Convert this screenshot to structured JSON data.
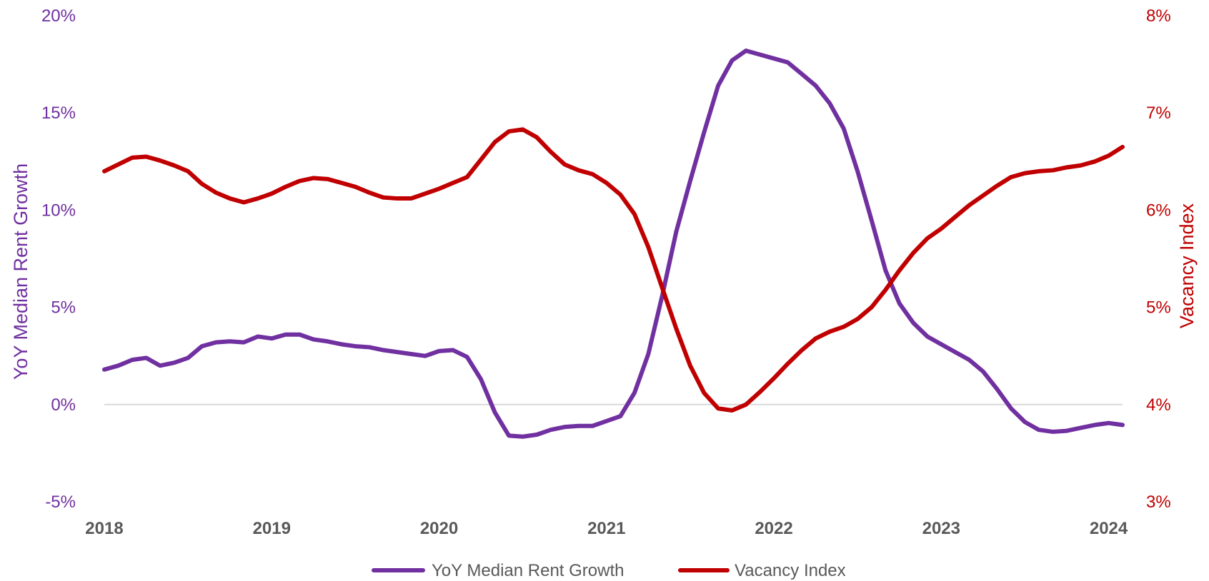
{
  "chart_data": {
    "type": "line",
    "title": "",
    "x_label": "",
    "y_label_left": "YoY Median Rent Growth",
    "y_label_right": "Vacancy Index",
    "x_ticks": [
      "2018",
      "2019",
      "2020",
      "2021",
      "2022",
      "2023",
      "2024"
    ],
    "y_left_ticks": [
      "20%",
      "15%",
      "10%",
      "5%",
      "0%",
      "-5%"
    ],
    "y_right_ticks": [
      "8%",
      "7%",
      "6%",
      "5%",
      "4%",
      "3%"
    ],
    "y_left_range": [
      -5,
      20
    ],
    "y_right_range": [
      3,
      8
    ],
    "x_range": [
      2018.0,
      2024.083
    ],
    "grid": false,
    "zero_line": true,
    "legend_position": "bottom",
    "colors": {
      "rent_growth": "#7030a0",
      "vacancy": "#c00000",
      "zero_line": "#d9d9d9",
      "tick_x": "#595959"
    },
    "series": [
      {
        "name": "YoY Median Rent Growth",
        "axis": "left",
        "points": [
          [
            2018.0,
            1.8
          ],
          [
            2018.083,
            2.0
          ],
          [
            2018.167,
            2.3
          ],
          [
            2018.25,
            2.4
          ],
          [
            2018.333,
            2.0
          ],
          [
            2018.417,
            2.15
          ],
          [
            2018.5,
            2.4
          ],
          [
            2018.583,
            3.0
          ],
          [
            2018.667,
            3.2
          ],
          [
            2018.75,
            3.25
          ],
          [
            2018.833,
            3.2
          ],
          [
            2018.917,
            3.5
          ],
          [
            2019.0,
            3.4
          ],
          [
            2019.083,
            3.6
          ],
          [
            2019.167,
            3.6
          ],
          [
            2019.25,
            3.35
          ],
          [
            2019.333,
            3.25
          ],
          [
            2019.417,
            3.1
          ],
          [
            2019.5,
            3.0
          ],
          [
            2019.583,
            2.95
          ],
          [
            2019.667,
            2.8
          ],
          [
            2019.75,
            2.7
          ],
          [
            2019.833,
            2.6
          ],
          [
            2019.917,
            2.5
          ],
          [
            2020.0,
            2.75
          ],
          [
            2020.083,
            2.8
          ],
          [
            2020.167,
            2.45
          ],
          [
            2020.25,
            1.3
          ],
          [
            2020.333,
            -0.4
          ],
          [
            2020.417,
            -1.6
          ],
          [
            2020.5,
            -1.65
          ],
          [
            2020.583,
            -1.55
          ],
          [
            2020.667,
            -1.3
          ],
          [
            2020.75,
            -1.15
          ],
          [
            2020.833,
            -1.1
          ],
          [
            2020.917,
            -1.1
          ],
          [
            2021.0,
            -0.85
          ],
          [
            2021.083,
            -0.6
          ],
          [
            2021.167,
            0.6
          ],
          [
            2021.25,
            2.6
          ],
          [
            2021.333,
            5.6
          ],
          [
            2021.417,
            8.9
          ],
          [
            2021.5,
            11.5
          ],
          [
            2021.583,
            14.0
          ],
          [
            2021.667,
            16.4
          ],
          [
            2021.75,
            17.7
          ],
          [
            2021.833,
            18.2
          ],
          [
            2021.917,
            18.0
          ],
          [
            2022.0,
            17.8
          ],
          [
            2022.083,
            17.6
          ],
          [
            2022.167,
            17.0
          ],
          [
            2022.25,
            16.4
          ],
          [
            2022.333,
            15.5
          ],
          [
            2022.417,
            14.2
          ],
          [
            2022.5,
            12.0
          ],
          [
            2022.583,
            9.5
          ],
          [
            2022.667,
            6.9
          ],
          [
            2022.75,
            5.2
          ],
          [
            2022.833,
            4.2
          ],
          [
            2022.917,
            3.5
          ],
          [
            2023.0,
            3.1
          ],
          [
            2023.083,
            2.7
          ],
          [
            2023.167,
            2.3
          ],
          [
            2023.25,
            1.7
          ],
          [
            2023.333,
            0.8
          ],
          [
            2023.417,
            -0.2
          ],
          [
            2023.5,
            -0.9
          ],
          [
            2023.583,
            -1.3
          ],
          [
            2023.667,
            -1.4
          ],
          [
            2023.75,
            -1.35
          ],
          [
            2023.833,
            -1.2
          ],
          [
            2023.917,
            -1.05
          ],
          [
            2024.0,
            -0.95
          ],
          [
            2024.083,
            -1.05
          ]
        ]
      },
      {
        "name": "Vacancy Index",
        "axis": "right",
        "points": [
          [
            2018.0,
            6.4
          ],
          [
            2018.083,
            6.47
          ],
          [
            2018.167,
            6.54
          ],
          [
            2018.25,
            6.55
          ],
          [
            2018.333,
            6.51
          ],
          [
            2018.417,
            6.46
          ],
          [
            2018.5,
            6.4
          ],
          [
            2018.583,
            6.27
          ],
          [
            2018.667,
            6.18
          ],
          [
            2018.75,
            6.12
          ],
          [
            2018.833,
            6.08
          ],
          [
            2018.917,
            6.12
          ],
          [
            2019.0,
            6.17
          ],
          [
            2019.083,
            6.24
          ],
          [
            2019.167,
            6.3
          ],
          [
            2019.25,
            6.33
          ],
          [
            2019.333,
            6.32
          ],
          [
            2019.417,
            6.28
          ],
          [
            2019.5,
            6.24
          ],
          [
            2019.583,
            6.18
          ],
          [
            2019.667,
            6.13
          ],
          [
            2019.75,
            6.12
          ],
          [
            2019.833,
            6.12
          ],
          [
            2019.917,
            6.17
          ],
          [
            2020.0,
            6.22
          ],
          [
            2020.083,
            6.28
          ],
          [
            2020.167,
            6.34
          ],
          [
            2020.25,
            6.52
          ],
          [
            2020.333,
            6.7
          ],
          [
            2020.417,
            6.81
          ],
          [
            2020.5,
            6.83
          ],
          [
            2020.583,
            6.75
          ],
          [
            2020.667,
            6.6
          ],
          [
            2020.75,
            6.47
          ],
          [
            2020.833,
            6.41
          ],
          [
            2020.917,
            6.37
          ],
          [
            2021.0,
            6.28
          ],
          [
            2021.083,
            6.16
          ],
          [
            2021.167,
            5.96
          ],
          [
            2021.25,
            5.62
          ],
          [
            2021.333,
            5.2
          ],
          [
            2021.417,
            4.78
          ],
          [
            2021.5,
            4.4
          ],
          [
            2021.583,
            4.12
          ],
          [
            2021.667,
            3.96
          ],
          [
            2021.75,
            3.94
          ],
          [
            2021.833,
            4.0
          ],
          [
            2021.917,
            4.13
          ],
          [
            2022.0,
            4.27
          ],
          [
            2022.083,
            4.42
          ],
          [
            2022.167,
            4.56
          ],
          [
            2022.25,
            4.68
          ],
          [
            2022.333,
            4.75
          ],
          [
            2022.417,
            4.8
          ],
          [
            2022.5,
            4.88
          ],
          [
            2022.583,
            5.0
          ],
          [
            2022.667,
            5.18
          ],
          [
            2022.75,
            5.38
          ],
          [
            2022.833,
            5.56
          ],
          [
            2022.917,
            5.71
          ],
          [
            2023.0,
            5.81
          ],
          [
            2023.083,
            5.93
          ],
          [
            2023.167,
            6.05
          ],
          [
            2023.25,
            6.15
          ],
          [
            2023.333,
            6.25
          ],
          [
            2023.417,
            6.34
          ],
          [
            2023.5,
            6.38
          ],
          [
            2023.583,
            6.4
          ],
          [
            2023.667,
            6.41
          ],
          [
            2023.75,
            6.44
          ],
          [
            2023.833,
            6.46
          ],
          [
            2023.917,
            6.5
          ],
          [
            2024.0,
            6.56
          ],
          [
            2024.083,
            6.65
          ]
        ]
      }
    ]
  }
}
